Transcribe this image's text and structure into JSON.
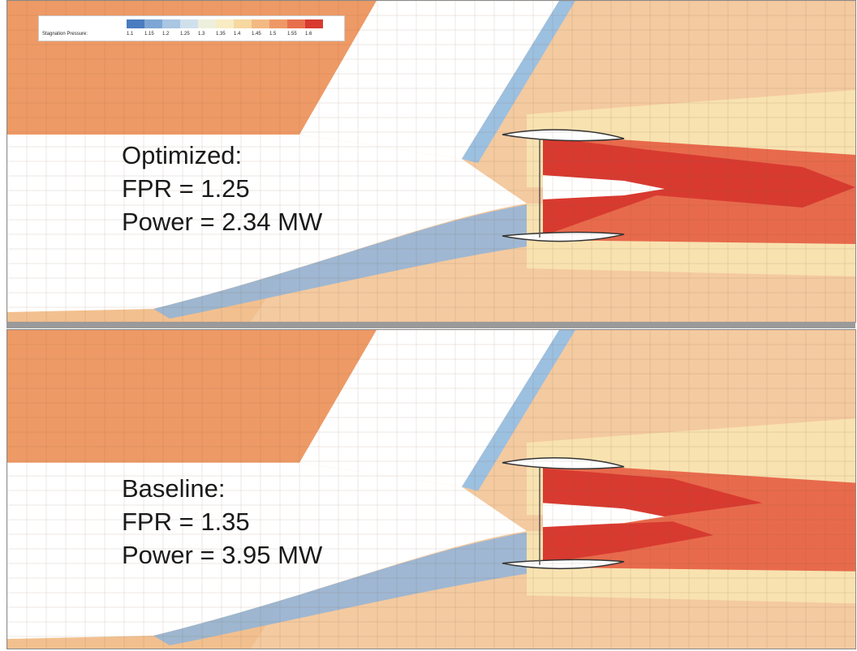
{
  "legend": {
    "title": "Stagnation Pressure:",
    "ticks": [
      "1.1",
      "1.15",
      "1.2",
      "1.25",
      "1.3",
      "1.35",
      "1.4",
      "1.45",
      "1.5",
      "1.55",
      "1.6"
    ],
    "colors": [
      "#4a7cc0",
      "#7ea6d4",
      "#a9c6e2",
      "#cfe0ec",
      "#eef0dd",
      "#f8ecc4",
      "#f6d8a0",
      "#f3b982",
      "#ee9866",
      "#e7704c",
      "#d83a30"
    ]
  },
  "panels": [
    {
      "label_line1": "Optimized:",
      "label_line2": "FPR = 1.25",
      "label_line3": "Power = 2.34 MW"
    },
    {
      "label_line1": "Baseline:",
      "label_line2": "FPR = 1.35",
      "label_line3": "Power = 3.95 MW"
    }
  ],
  "colors": {
    "free_stream": "#ee9a66",
    "far_field": "#f2c08f",
    "wake_light": "#f8e2b0",
    "jet_core": "#d83a30",
    "jet_mid": "#e86a4c",
    "boundary_blue": "#8fb4da",
    "grid_line": "#7a5a40"
  }
}
